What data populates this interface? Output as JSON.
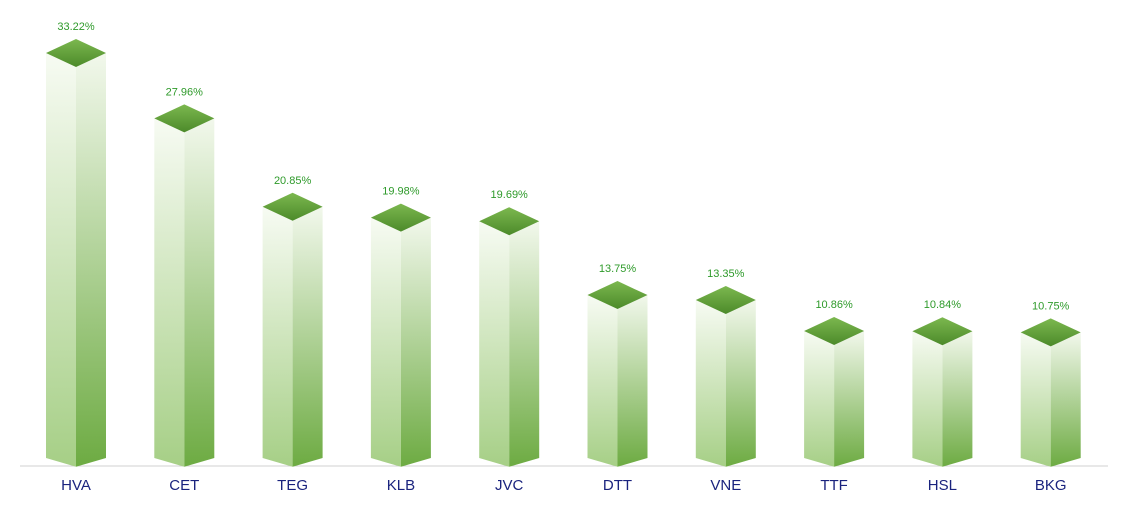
{
  "chart_data": {
    "type": "bar",
    "title": "",
    "xlabel": "",
    "ylabel": "",
    "categories": [
      "HVA",
      "CET",
      "TEG",
      "KLB",
      "JVC",
      "DTT",
      "VNE",
      "TTF",
      "HSL",
      "BKG"
    ],
    "values": [
      33.22,
      27.96,
      20.85,
      19.98,
      19.69,
      13.75,
      13.35,
      10.86,
      10.84,
      10.75
    ],
    "value_labels": [
      "33.22%",
      "27.96%",
      "20.85%",
      "19.98%",
      "19.69%",
      "13.75%",
      "13.35%",
      "10.86%",
      "10.84%",
      "10.75%"
    ],
    "ylim": [
      0,
      33.22
    ],
    "grid": false,
    "legend": "none",
    "style": "3d-box"
  },
  "colors": {
    "bar_top": "#6aa83f",
    "bar_top_dark": "#4f8c2c",
    "bar_face_light": "#f6faf2",
    "bar_face_dark": "#7bb352",
    "value_label": "#2e9a2a",
    "category_label": "#1a237e",
    "axis": "#d0d0d0"
  }
}
